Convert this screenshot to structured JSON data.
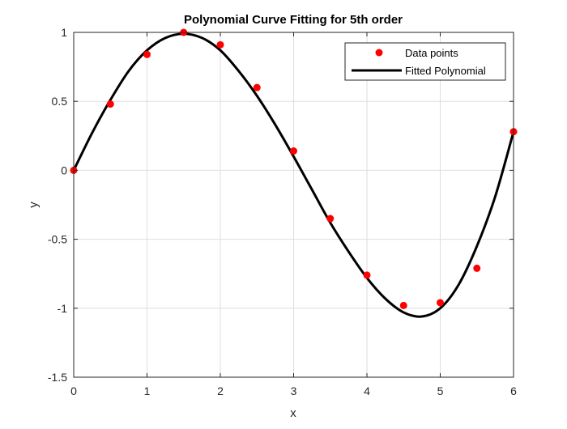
{
  "chart_data": {
    "type": "line",
    "title": "Polynomial Curve Fitting for 5th order",
    "xlabel": "x",
    "ylabel": "y",
    "xlim": [
      0,
      6
    ],
    "ylim": [
      -1.5,
      1
    ],
    "xticks": [
      0,
      1,
      2,
      3,
      4,
      5,
      6
    ],
    "xtick_labels": [
      "0",
      "1",
      "2",
      "3",
      "4",
      "5",
      "6"
    ],
    "yticks": [
      -1.5,
      -1,
      -0.5,
      0,
      0.5,
      1
    ],
    "ytick_labels": [
      "-1.5",
      "-1",
      "-0.5",
      "0",
      "0.5",
      "1"
    ],
    "grid": true,
    "legend_position": "top-right",
    "series": [
      {
        "name": "Data points",
        "kind": "scatter",
        "color": "#ff0000",
        "x": [
          0,
          0.5,
          1,
          1.5,
          2,
          2.5,
          3,
          3.5,
          4,
          4.5,
          5,
          5.5,
          6
        ],
        "y": [
          0,
          0.48,
          0.84,
          1.0,
          0.91,
          0.6,
          0.14,
          -0.35,
          -0.76,
          -0.98,
          -0.96,
          -0.71,
          0.28
        ]
      },
      {
        "name": "Fitted Polynomial",
        "kind": "line",
        "color": "#000000",
        "x": [
          0,
          0.25,
          0.5,
          0.75,
          1,
          1.25,
          1.5,
          1.75,
          2,
          2.25,
          2.5,
          2.75,
          3,
          3.25,
          3.5,
          3.75,
          4,
          4.25,
          4.5,
          4.75,
          5,
          5.25,
          5.5,
          5.75,
          6
        ],
        "y": [
          0.0,
          0.27,
          0.51,
          0.72,
          0.87,
          0.96,
          0.99,
          0.96,
          0.87,
          0.72,
          0.54,
          0.33,
          0.1,
          -0.14,
          -0.38,
          -0.59,
          -0.78,
          -0.93,
          -1.03,
          -1.06,
          -1.0,
          -0.83,
          -0.55,
          -0.19,
          0.28
        ]
      }
    ]
  }
}
